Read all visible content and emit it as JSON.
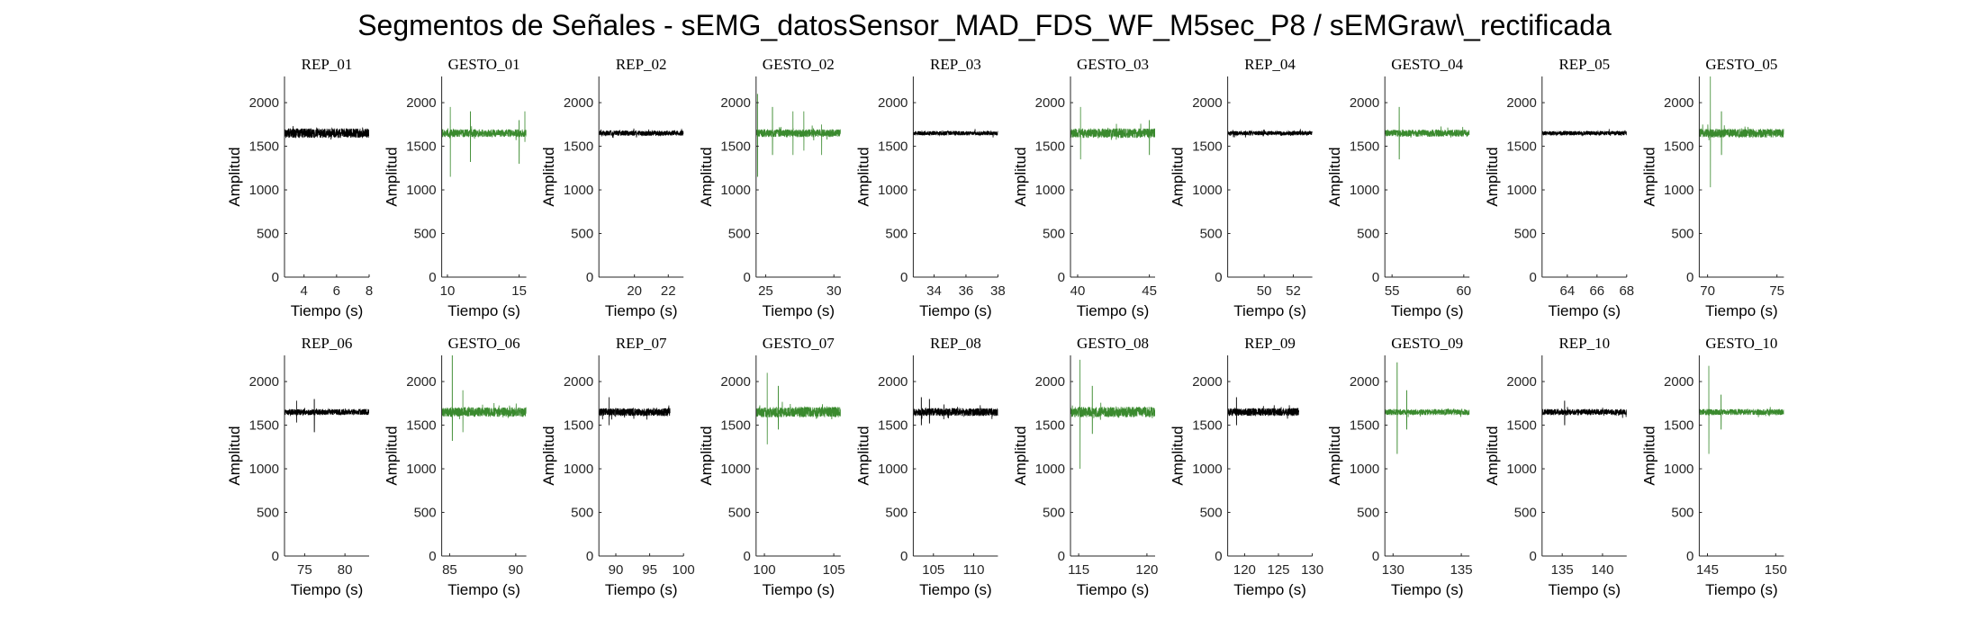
{
  "figure_title": "Segmentos de Señales - sEMG_datosSensor_MAD_FDS_WF_M5sec_P8 / sEMGraw\\_rectificada",
  "colors": {
    "rep": "#000000",
    "gesto": "#3a8a2e",
    "axis": "#262626"
  },
  "chart_data": [
    {
      "type": "line",
      "title": "REP_01",
      "series_kind": "rep",
      "xlim": [
        2.8,
        8
      ],
      "xticks": [
        4,
        6,
        8
      ],
      "x_range": [
        2.8,
        8
      ],
      "ylim": [
        0,
        2300
      ],
      "yticks": [
        0,
        500,
        1000,
        1500,
        2000
      ],
      "baseline": 1650,
      "noise": 55,
      "spikes": [],
      "xlabel": "Tiempo (s)",
      "ylabel": "Amplitud"
    },
    {
      "type": "line",
      "title": "GESTO_01",
      "series_kind": "gesto",
      "xlim": [
        9.6,
        15.5
      ],
      "xticks": [
        10,
        15
      ],
      "x_range": [
        9.6,
        15.5
      ],
      "ylim": [
        0,
        2300
      ],
      "yticks": [
        0,
        500,
        1000,
        1500,
        2000
      ],
      "baseline": 1650,
      "noise": 45,
      "spikes": [
        [
          10.2,
          1950,
          1150
        ],
        [
          11.6,
          1900,
          1320
        ],
        [
          15.0,
          1800,
          1300
        ],
        [
          15.4,
          1900,
          1550
        ]
      ],
      "xlabel": "Tiempo (s)",
      "ylabel": "Amplitud"
    },
    {
      "type": "line",
      "title": "REP_02",
      "series_kind": "rep",
      "xlim": [
        17.9,
        22.9
      ],
      "xticks": [
        20,
        22
      ],
      "x_range": [
        17.9,
        22.9
      ],
      "ylim": [
        0,
        2300
      ],
      "yticks": [
        0,
        500,
        1000,
        1500,
        2000
      ],
      "baseline": 1650,
      "noise": 30,
      "spikes": [],
      "xlabel": "Tiempo (s)",
      "ylabel": "Amplitud"
    },
    {
      "type": "line",
      "title": "GESTO_02",
      "series_kind": "gesto",
      "xlim": [
        24.3,
        30.5
      ],
      "xticks": [
        25,
        30
      ],
      "x_range": [
        24.3,
        30.5
      ],
      "ylim": [
        0,
        2300
      ],
      "yticks": [
        0,
        500,
        1000,
        1500,
        2000
      ],
      "baseline": 1650,
      "noise": 45,
      "spikes": [
        [
          24.4,
          2100,
          1150
        ],
        [
          25.5,
          1950,
          1400
        ],
        [
          27.0,
          1900,
          1400
        ],
        [
          27.8,
          1900,
          1450
        ],
        [
          29.1,
          1750,
          1400
        ]
      ],
      "xlabel": "Tiempo (s)",
      "ylabel": "Amplitud"
    },
    {
      "type": "line",
      "title": "REP_03",
      "series_kind": "rep",
      "xlim": [
        32.7,
        38
      ],
      "xticks": [
        34,
        36,
        38
      ],
      "x_range": [
        32.7,
        38
      ],
      "ylim": [
        0,
        2300
      ],
      "yticks": [
        0,
        500,
        1000,
        1500,
        2000
      ],
      "baseline": 1650,
      "noise": 25,
      "spikes": [],
      "xlabel": "Tiempo (s)",
      "ylabel": "Amplitud"
    },
    {
      "type": "line",
      "title": "GESTO_03",
      "series_kind": "gesto",
      "xlim": [
        39.5,
        45.4
      ],
      "xticks": [
        40,
        45
      ],
      "x_range": [
        39.5,
        45.4
      ],
      "ylim": [
        0,
        2300
      ],
      "yticks": [
        0,
        500,
        1000,
        1500,
        2000
      ],
      "baseline": 1650,
      "noise": 55,
      "spikes": [
        [
          40.2,
          1950,
          1350
        ],
        [
          45.0,
          1800,
          1400
        ]
      ],
      "xlabel": "Tiempo (s)",
      "ylabel": "Amplitud"
    },
    {
      "type": "line",
      "title": "REP_04",
      "series_kind": "rep",
      "xlim": [
        47.5,
        53.3
      ],
      "xticks": [
        50,
        52
      ],
      "x_range": [
        47.5,
        53.3
      ],
      "ylim": [
        0,
        2300
      ],
      "yticks": [
        0,
        500,
        1000,
        1500,
        2000
      ],
      "baseline": 1650,
      "noise": 25,
      "spikes": [],
      "xlabel": "Tiempo (s)",
      "ylabel": "Amplitud"
    },
    {
      "type": "line",
      "title": "GESTO_04",
      "series_kind": "gesto",
      "xlim": [
        54.5,
        60.4
      ],
      "xticks": [
        55,
        60
      ],
      "x_range": [
        54.5,
        60.4
      ],
      "ylim": [
        0,
        2300
      ],
      "yticks": [
        0,
        500,
        1000,
        1500,
        2000
      ],
      "baseline": 1650,
      "noise": 40,
      "spikes": [
        [
          55.5,
          1950,
          1350
        ]
      ],
      "xlabel": "Tiempo (s)",
      "ylabel": "Amplitud"
    },
    {
      "type": "line",
      "title": "REP_05",
      "series_kind": "rep",
      "xlim": [
        62.3,
        68
      ],
      "xticks": [
        64,
        66,
        68
      ],
      "x_range": [
        62.3,
        68
      ],
      "ylim": [
        0,
        2300
      ],
      "yticks": [
        0,
        500,
        1000,
        1500,
        2000
      ],
      "baseline": 1650,
      "noise": 25,
      "spikes": [],
      "xlabel": "Tiempo (s)",
      "ylabel": "Amplitud"
    },
    {
      "type": "line",
      "title": "GESTO_05",
      "series_kind": "gesto",
      "xlim": [
        69.4,
        75.5
      ],
      "xticks": [
        70,
        75
      ],
      "x_range": [
        69.4,
        75.5
      ],
      "ylim": [
        0,
        2300
      ],
      "yticks": [
        0,
        500,
        1000,
        1500,
        2000
      ],
      "baseline": 1650,
      "noise": 50,
      "spikes": [
        [
          70.2,
          2300,
          1030
        ],
        [
          71.0,
          1900,
          1400
        ]
      ],
      "xlabel": "Tiempo (s)",
      "ylabel": "Amplitud"
    },
    {
      "type": "line",
      "title": "REP_06",
      "series_kind": "rep",
      "xlim": [
        72.5,
        83
      ],
      "xticks": [
        75,
        80
      ],
      "x_range": [
        72.5,
        83
      ],
      "ylim": [
        0,
        2300
      ],
      "yticks": [
        0,
        500,
        1000,
        1500,
        2000
      ],
      "baseline": 1650,
      "noise": 35,
      "spikes": [
        [
          74.0,
          1780,
          1530
        ],
        [
          76.2,
          1800,
          1420
        ]
      ],
      "xlabel": "Tiempo (s)",
      "ylabel": "Amplitud"
    },
    {
      "type": "line",
      "title": "GESTO_06",
      "series_kind": "gesto",
      "xlim": [
        84.4,
        90.8
      ],
      "xticks": [
        85,
        90
      ],
      "x_range": [
        84.4,
        90.8
      ],
      "ylim": [
        0,
        2300
      ],
      "yticks": [
        0,
        500,
        1000,
        1500,
        2000
      ],
      "baseline": 1650,
      "noise": 55,
      "spikes": [
        [
          85.2,
          2300,
          1320
        ],
        [
          86.0,
          1900,
          1420
        ]
      ],
      "xlabel": "Tiempo (s)",
      "ylabel": "Amplitud"
    },
    {
      "type": "line",
      "title": "REP_07",
      "series_kind": "rep",
      "xlim": [
        87.5,
        100
      ],
      "xticks": [
        90,
        95,
        100
      ],
      "x_range": [
        87.5,
        98
      ],
      "ylim": [
        0,
        2300
      ],
      "yticks": [
        0,
        500,
        1000,
        1500,
        2000
      ],
      "baseline": 1650,
      "noise": 45,
      "spikes": [
        [
          89.0,
          1820,
          1500
        ]
      ],
      "xlabel": "Tiempo (s)",
      "ylabel": "Amplitud"
    },
    {
      "type": "line",
      "title": "GESTO_07",
      "series_kind": "gesto",
      "xlim": [
        99.4,
        105.5
      ],
      "xticks": [
        100,
        105
      ],
      "x_range": [
        99.4,
        105.5
      ],
      "ylim": [
        0,
        2300
      ],
      "yticks": [
        0,
        500,
        1000,
        1500,
        2000
      ],
      "baseline": 1650,
      "noise": 60,
      "spikes": [
        [
          100.2,
          2100,
          1280
        ],
        [
          101.0,
          1950,
          1450
        ]
      ],
      "xlabel": "Tiempo (s)",
      "ylabel": "Amplitud"
    },
    {
      "type": "line",
      "title": "REP_08",
      "series_kind": "rep",
      "xlim": [
        102.5,
        113
      ],
      "xticks": [
        105,
        110
      ],
      "x_range": [
        102.5,
        113
      ],
      "ylim": [
        0,
        2300
      ],
      "yticks": [
        0,
        500,
        1000,
        1500,
        2000
      ],
      "baseline": 1650,
      "noise": 45,
      "spikes": [
        [
          103.5,
          1820,
          1500
        ],
        [
          104.5,
          1800,
          1520
        ]
      ],
      "xlabel": "Tiempo (s)",
      "ylabel": "Amplitud"
    },
    {
      "type": "line",
      "title": "GESTO_08",
      "series_kind": "gesto",
      "xlim": [
        114.4,
        120.6
      ],
      "xticks": [
        115,
        120
      ],
      "x_range": [
        114.4,
        120.6
      ],
      "ylim": [
        0,
        2300
      ],
      "yticks": [
        0,
        500,
        1000,
        1500,
        2000
      ],
      "baseline": 1650,
      "noise": 60,
      "spikes": [
        [
          115.1,
          2250,
          1000
        ],
        [
          116.0,
          1950,
          1400
        ]
      ],
      "xlabel": "Tiempo (s)",
      "ylabel": "Amplitud"
    },
    {
      "type": "line",
      "title": "REP_09",
      "series_kind": "rep",
      "xlim": [
        117.5,
        130
      ],
      "xticks": [
        120,
        125,
        130
      ],
      "x_range": [
        117.5,
        128
      ],
      "ylim": [
        0,
        2300
      ],
      "yticks": [
        0,
        500,
        1000,
        1500,
        2000
      ],
      "baseline": 1650,
      "noise": 45,
      "spikes": [
        [
          118.8,
          1820,
          1500
        ]
      ],
      "xlabel": "Tiempo (s)",
      "ylabel": "Amplitud"
    },
    {
      "type": "line",
      "title": "GESTO_09",
      "series_kind": "gesto",
      "xlim": [
        129.4,
        135.6
      ],
      "xticks": [
        130,
        135
      ],
      "x_range": [
        129.4,
        135.6
      ],
      "ylim": [
        0,
        2300
      ],
      "yticks": [
        0,
        500,
        1000,
        1500,
        2000
      ],
      "baseline": 1650,
      "noise": 35,
      "spikes": [
        [
          130.3,
          2220,
          1170
        ],
        [
          131.0,
          1900,
          1450
        ]
      ],
      "xlabel": "Tiempo (s)",
      "ylabel": "Amplitud"
    },
    {
      "type": "line",
      "title": "REP_10",
      "series_kind": "rep",
      "xlim": [
        132.5,
        143
      ],
      "xticks": [
        135,
        140
      ],
      "x_range": [
        132.5,
        143
      ],
      "ylim": [
        0,
        2300
      ],
      "yticks": [
        0,
        500,
        1000,
        1500,
        2000
      ],
      "baseline": 1650,
      "noise": 35,
      "spikes": [
        [
          135.3,
          1780,
          1500
        ]
      ],
      "xlabel": "Tiempo (s)",
      "ylabel": "Amplitud"
    },
    {
      "type": "line",
      "title": "GESTO_10",
      "series_kind": "gesto",
      "xlim": [
        144.4,
        150.6
      ],
      "xticks": [
        145,
        150
      ],
      "x_range": [
        144.4,
        150.6
      ],
      "ylim": [
        0,
        2300
      ],
      "yticks": [
        0,
        500,
        1000,
        1500,
        2000
      ],
      "baseline": 1650,
      "noise": 35,
      "spikes": [
        [
          145.1,
          2180,
          1170
        ],
        [
          146.0,
          1850,
          1450
        ]
      ],
      "xlabel": "Tiempo (s)",
      "ylabel": "Amplitud"
    }
  ]
}
